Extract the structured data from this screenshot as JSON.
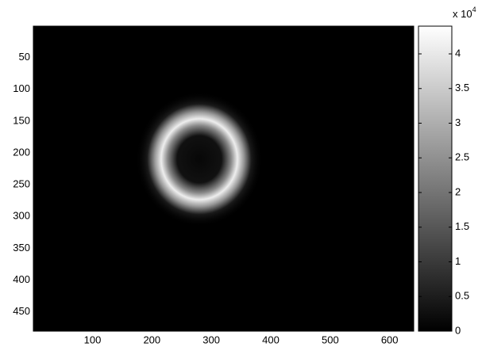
{
  "chart_data": {
    "type": "image",
    "xlim": [
      0.5,
      640.5
    ],
    "xticks": [
      100,
      200,
      300,
      400,
      500,
      600
    ],
    "ylim": [
      0.5,
      480.5
    ],
    "yticks": [
      50,
      100,
      150,
      200,
      250,
      300,
      350,
      400,
      450
    ],
    "y_reversed": true,
    "colormap": "gray",
    "clim": [
      0,
      44000
    ],
    "colorbar_ticks": [
      {
        "value": 0,
        "label": "0"
      },
      {
        "value": 5000,
        "label": "0.5"
      },
      {
        "value": 10000,
        "label": "1"
      },
      {
        "value": 15000,
        "label": "1.5"
      },
      {
        "value": 20000,
        "label": "2"
      },
      {
        "value": 25000,
        "label": "2.5"
      },
      {
        "value": 30000,
        "label": "3"
      },
      {
        "value": 35000,
        "label": "3.5"
      },
      {
        "value": 40000,
        "label": "4"
      }
    ],
    "colorbar_exponent": {
      "base": "x 10",
      "power": "4"
    }
  }
}
